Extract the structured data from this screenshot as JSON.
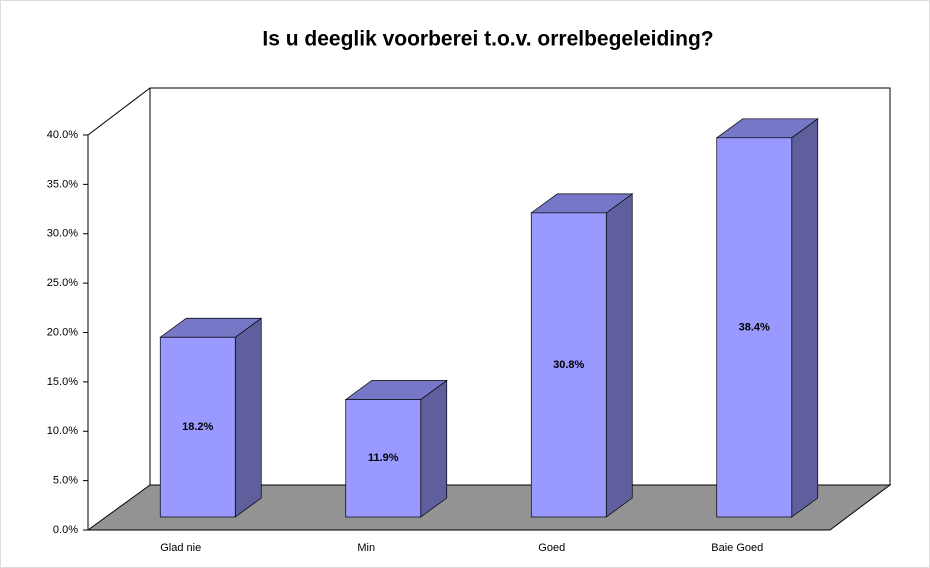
{
  "chart_data": {
    "type": "bar3d",
    "title": "Is u deeglik voorberei t.o.v. orrelbegeleiding?",
    "categories": [
      "Glad nie",
      "Min",
      "Goed",
      "Baie Goed"
    ],
    "values": [
      18.2,
      11.9,
      30.8,
      38.4
    ],
    "value_labels": [
      "18.2%",
      "11.9%",
      "30.8%",
      "38.4%"
    ],
    "color": "#9999ff",
    "ylim": [
      0,
      40
    ],
    "yticks": [
      {
        "value": 0,
        "label": "0.0%"
      },
      {
        "value": 5,
        "label": "5.0%"
      },
      {
        "value": 10,
        "label": "10.0%"
      },
      {
        "value": 15,
        "label": "15.0%"
      },
      {
        "value": 20,
        "label": "20.0%"
      },
      {
        "value": 25,
        "label": "25.0%"
      },
      {
        "value": 30,
        "label": "30.0%"
      },
      {
        "value": 35,
        "label": "35.0%"
      },
      {
        "value": 40,
        "label": "40.0%"
      }
    ],
    "grid": false
  }
}
